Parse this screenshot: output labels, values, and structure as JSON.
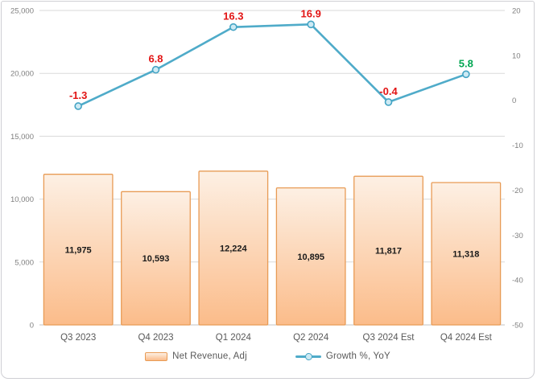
{
  "chart_data": {
    "type": "combo-bar-line",
    "title": "",
    "categories": [
      "Q3 2023",
      "Q4 2023",
      "Q1 2024",
      "Q2 2024",
      "Q3 2024 Est",
      "Q4 2024 Est"
    ],
    "series": [
      {
        "name": "Net Revenue, Adj",
        "type": "bar",
        "axis": "left",
        "values": [
          11975,
          10593,
          12224,
          10895,
          11817,
          11318
        ],
        "value_labels": [
          "11,975",
          "10,593",
          "12,224",
          "10,895",
          "11,817",
          "11,318"
        ]
      },
      {
        "name": "Growth %, YoY",
        "type": "line",
        "axis": "right",
        "values": [
          -1.3,
          6.8,
          16.3,
          16.9,
          -0.4,
          5.8
        ],
        "value_labels": [
          "-1.3",
          "6.8",
          "16.3",
          "16.9",
          "-0.4",
          "5.8"
        ],
        "value_label_colors": [
          "#e21414",
          "#e21414",
          "#e21414",
          "#e21414",
          "#e21414",
          "#00a651"
        ]
      }
    ],
    "left_axis": {
      "min": 0,
      "max": 25000,
      "tick_values": [
        0,
        5000,
        10000,
        15000,
        20000,
        25000
      ],
      "tick_labels": [
        "0",
        "5,000",
        "10,000",
        "15,000",
        "20,000",
        "25,000"
      ]
    },
    "right_axis": {
      "min": -50,
      "max": 20,
      "tick_values": [
        20,
        10,
        0,
        -10,
        -20,
        -30,
        -40,
        -50
      ],
      "tick_labels": [
        "20",
        "10",
        "0",
        "-10",
        "-20",
        "-30",
        "-40",
        "-50"
      ]
    },
    "grid": true,
    "legend_position": "bottom"
  },
  "colors": {
    "bar_fill_top": "#fdf0e4",
    "bar_fill_bottom": "#fbbc8a",
    "bar_border": "#e89b55",
    "line": "#4fabc9",
    "marker_fill": "#cdeaf4",
    "marker_border": "#45a4c4",
    "grid": "#dadada",
    "axis_line": "#c3c3c3",
    "axis_text": "#7f7f7f",
    "category_text": "#595959",
    "bar_label_text": "#1a1a1a"
  }
}
